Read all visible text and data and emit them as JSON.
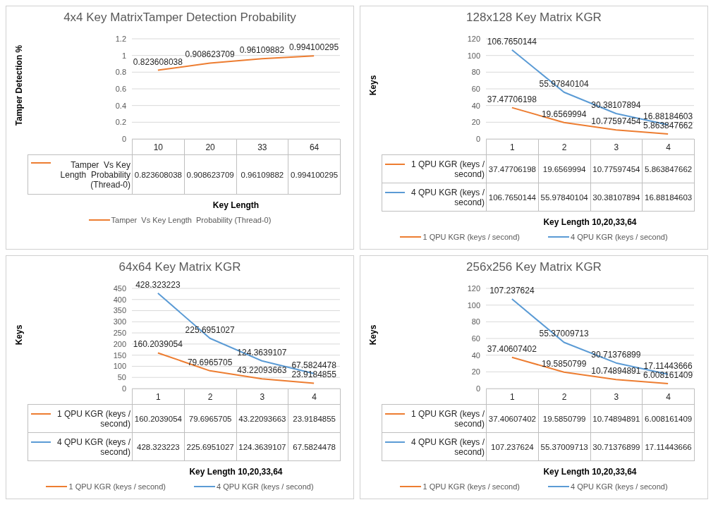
{
  "chart_data": [
    {
      "type": "line",
      "title": "4x4 Key MatrixTamper Detection Probability",
      "xlabel": "Key Length",
      "ylabel": "Tamper Detection %",
      "categories": [
        "10",
        "20",
        "33",
        "64"
      ],
      "series": [
        {
          "name": "Tamper  Vs Key Length  Probability (Thread-0)",
          "color": "#ed7d31",
          "values": [
            0.823608038,
            0.908623709,
            0.96109882,
            0.994100295
          ]
        }
      ],
      "annotations": [
        {
          "text": "0.823608038",
          "x": "10",
          "y": 0.823608038
        },
        {
          "text": "0.908623709",
          "x": "20",
          "y": 0.908623709
        },
        {
          "text": "0.96109882",
          "x": "33",
          "y": 0.96109882
        },
        {
          "text": "0.994100295",
          "x": "64",
          "y": 0.994100295
        }
      ],
      "ylim": [
        0,
        1.2
      ],
      "yticks": [
        0,
        0.2,
        0.4,
        0.6,
        0.8,
        1,
        1.2
      ],
      "grid": "y",
      "legend": "bottom",
      "data_labels": true,
      "marker": "none",
      "line_style": "solid"
    },
    {
      "type": "line",
      "title": "128x128 Key Matrix KGR",
      "xlabel": "Key Length 10,20,33,64",
      "ylabel": "Keys",
      "categories": [
        "1",
        "2",
        "3",
        "4"
      ],
      "series": [
        {
          "name": "1 QPU KGR (keys / second)",
          "color": "#ed7d31",
          "values": [
            37.47706198,
            19.6569994,
            10.77597454,
            5.863847662
          ]
        },
        {
          "name": "4 QPU KGR (keys / second)",
          "color": "#5b9bd5",
          "values": [
            106.7650144,
            55.97840104,
            30.38107894,
            16.88184603
          ]
        }
      ],
      "annotations": [
        {
          "text": "37.47706198",
          "x": "1",
          "y": 37.47706198
        },
        {
          "text": "19.6569994",
          "x": "2",
          "y": 19.6569994
        },
        {
          "text": "10.77597454",
          "x": "3",
          "y": 10.77597454
        },
        {
          "text": "5.863847662",
          "x": "4",
          "y": 5.863847662
        },
        {
          "text": "106.7650144",
          "x": "1",
          "y": 106.7650144
        },
        {
          "text": "55.97840104",
          "x": "2",
          "y": 55.97840104
        },
        {
          "text": "30.38107894",
          "x": "3",
          "y": 30.38107894
        },
        {
          "text": "16.88184603",
          "x": "4",
          "y": 16.88184603
        }
      ],
      "ylim": [
        0,
        120
      ],
      "yticks": [
        0,
        20,
        40,
        60,
        80,
        100,
        120
      ],
      "grid": "y",
      "legend": "bottom",
      "data_labels": true,
      "marker": "none",
      "line_style": "solid"
    },
    {
      "type": "line",
      "title": "64x64 Key Matrix KGR",
      "xlabel": "Key Length 10,20,33,64",
      "ylabel": "Keys",
      "categories": [
        "1",
        "2",
        "3",
        "4"
      ],
      "series": [
        {
          "name": "1 QPU KGR (keys / second)",
          "color": "#ed7d31",
          "values": [
            160.2039054,
            79.6965705,
            43.22093663,
            23.9184855
          ]
        },
        {
          "name": "4 QPU KGR (keys / second)",
          "color": "#5b9bd5",
          "values": [
            428.323223,
            225.6951027,
            124.3639107,
            67.5824478
          ]
        }
      ],
      "annotations": [
        {
          "text": "160.2039054",
          "x": "1",
          "y": 160.2039054
        },
        {
          "text": "79.6965705",
          "x": "2",
          "y": 79.6965705
        },
        {
          "text": "43.22093663",
          "x": "3",
          "y": 43.22093663
        },
        {
          "text": "23.9184855",
          "x": "4",
          "y": 23.9184855
        },
        {
          "text": "428.323223",
          "x": "1",
          "y": 428.323223
        },
        {
          "text": "225.6951027",
          "x": "2",
          "y": 225.6951027
        },
        {
          "text": "124.3639107",
          "x": "3",
          "y": 124.3639107
        },
        {
          "text": "67.5824478",
          "x": "4",
          "y": 67.5824478
        }
      ],
      "ylim": [
        0,
        450
      ],
      "yticks": [
        0,
        50,
        100,
        150,
        200,
        250,
        300,
        350,
        400,
        450
      ],
      "grid": "y",
      "legend": "bottom",
      "data_labels": true,
      "marker": "none",
      "line_style": "solid"
    },
    {
      "type": "line",
      "title": "256x256 Key Matrix KGR",
      "xlabel": "Key Length 10,20,33,64",
      "ylabel": "Keys",
      "categories": [
        "1",
        "2",
        "3",
        "4"
      ],
      "series": [
        {
          "name": "1 QPU KGR (keys / second)",
          "color": "#ed7d31",
          "values": [
            37.40607402,
            19.5850799,
            10.74894891,
            6.008161409
          ]
        },
        {
          "name": "4 QPU KGR (keys / second)",
          "color": "#5b9bd5",
          "values": [
            107.237624,
            55.37009713,
            30.71376899,
            17.11443666
          ]
        }
      ],
      "annotations": [
        {
          "text": "37.40607402",
          "x": "1",
          "y": 37.40607402
        },
        {
          "text": "19.5850799",
          "x": "2",
          "y": 19.5850799
        },
        {
          "text": "10.74894891",
          "x": "3",
          "y": 10.74894891
        },
        {
          "text": "6.008161409",
          "x": "4",
          "y": 6.008161409
        },
        {
          "text": "107.237624",
          "x": "1",
          "y": 107.237624
        },
        {
          "text": "55.37009713",
          "x": "2",
          "y": 55.37009713
        },
        {
          "text": "30.71376899",
          "x": "3",
          "y": 30.71376899
        },
        {
          "text": "17.11443666",
          "x": "4",
          "y": 17.11443666
        }
      ],
      "ylim": [
        0,
        120
      ],
      "yticks": [
        0,
        20,
        40,
        60,
        80,
        100,
        120
      ],
      "grid": "y",
      "legend": "bottom",
      "data_labels": true,
      "marker": "none",
      "line_style": "solid"
    }
  ]
}
